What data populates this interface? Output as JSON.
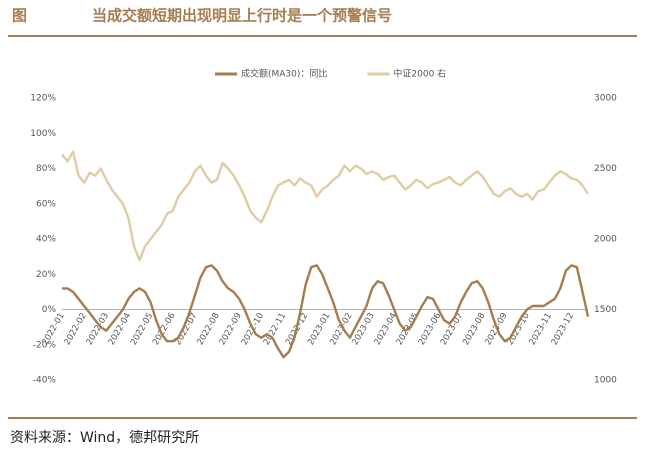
{
  "chart_data": {
    "type": "line",
    "figure_label": "图",
    "title": "当成交额短期出现明显上行时是一个预警信号",
    "source": "资料来源：Wind，德邦研究所",
    "categories": [
      "2022-01",
      null,
      null,
      null,
      "2022-02",
      null,
      null,
      null,
      "2022-03",
      null,
      null,
      null,
      "2022-04",
      null,
      null,
      null,
      "2022-05",
      null,
      null,
      null,
      "2022-06",
      null,
      null,
      null,
      "2022-07",
      null,
      null,
      null,
      "2022-08",
      null,
      null,
      null,
      "2022-09",
      null,
      null,
      null,
      "2022-10",
      null,
      null,
      null,
      "2022-11",
      null,
      null,
      null,
      "2022-12",
      null,
      null,
      null,
      "2023-01",
      null,
      null,
      null,
      "2023-02",
      null,
      null,
      null,
      "2023-03",
      null,
      null,
      null,
      "2023-04",
      null,
      null,
      null,
      "2023-05",
      null,
      null,
      null,
      "2023-06",
      null,
      null,
      null,
      "2023-07",
      null,
      null,
      null,
      "2023-08",
      null,
      null,
      null,
      "2023-09",
      null,
      null,
      null,
      "2023-10",
      null,
      null,
      null,
      "2023-11",
      null,
      null,
      null,
      "2023-12",
      null,
      null,
      null
    ],
    "series": [
      {
        "name": "成交额(MA30)：同比",
        "color": "#a57c4f",
        "axis": "y",
        "values": [
          12,
          12,
          10,
          6,
          2,
          -2,
          -6,
          -10,
          -12,
          -8,
          -4,
          0,
          6,
          10,
          12,
          10,
          4,
          -6,
          -14,
          -18,
          -18,
          -16,
          -10,
          -2,
          8,
          18,
          24,
          25,
          22,
          16,
          12,
          10,
          6,
          0,
          -8,
          -14,
          -16,
          -14,
          -16,
          -22,
          -27,
          -24,
          -16,
          -2,
          14,
          24,
          25,
          20,
          12,
          4,
          -6,
          -12,
          -16,
          -10,
          -4,
          2,
          12,
          16,
          15,
          8,
          0,
          -8,
          -12,
          -10,
          -4,
          2,
          7,
          6,
          0,
          -6,
          -8,
          -4,
          4,
          10,
          15,
          16,
          12,
          4,
          -6,
          -14,
          -18,
          -16,
          -10,
          -4,
          0,
          2,
          2,
          2,
          4,
          6,
          12,
          22,
          25,
          24,
          10,
          -4
        ]
      },
      {
        "name": "中证2000 右",
        "color": "#dfcca3",
        "axis": "y2",
        "values": [
          2600,
          2550,
          2620,
          2450,
          2400,
          2470,
          2450,
          2500,
          2420,
          2350,
          2300,
          2250,
          2150,
          1950,
          1850,
          1950,
          2000,
          2050,
          2100,
          2180,
          2200,
          2300,
          2350,
          2400,
          2480,
          2520,
          2450,
          2400,
          2420,
          2540,
          2500,
          2450,
          2380,
          2300,
          2200,
          2150,
          2120,
          2200,
          2300,
          2380,
          2400,
          2420,
          2380,
          2430,
          2400,
          2380,
          2300,
          2350,
          2380,
          2420,
          2450,
          2520,
          2480,
          2520,
          2500,
          2460,
          2480,
          2460,
          2420,
          2440,
          2450,
          2400,
          2350,
          2380,
          2420,
          2400,
          2360,
          2390,
          2400,
          2420,
          2440,
          2400,
          2380,
          2420,
          2450,
          2480,
          2440,
          2380,
          2320,
          2300,
          2340,
          2360,
          2320,
          2300,
          2320,
          2280,
          2340,
          2350,
          2400,
          2450,
          2480,
          2460,
          2430,
          2420,
          2380,
          2320
        ]
      }
    ],
    "ylim": [
      -40,
      120
    ],
    "yticks": [
      {
        "value": -40,
        "label": "-40%"
      },
      {
        "value": -20,
        "label": "-20%"
      },
      {
        "value": 0,
        "label": "0%"
      },
      {
        "value": 20,
        "label": "20%"
      },
      {
        "value": 40,
        "label": "40%"
      },
      {
        "value": 60,
        "label": "60%"
      },
      {
        "value": 80,
        "label": "80%"
      },
      {
        "value": 100,
        "label": "100%"
      },
      {
        "value": 120,
        "label": "120%"
      }
    ],
    "y2lim": [
      1000,
      3000
    ],
    "y2ticks": [
      1000,
      1500,
      2000,
      2500,
      3000
    ],
    "grid": false,
    "legend": "top"
  }
}
